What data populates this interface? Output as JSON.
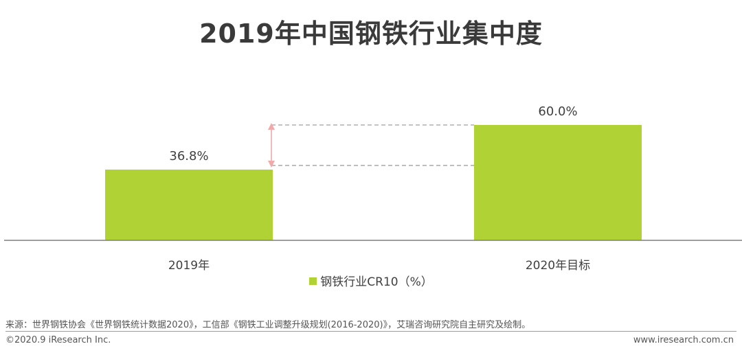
{
  "chart_data": {
    "type": "bar",
    "title": "2019年中国钢铁行业集中度",
    "categories": [
      "2019年",
      "2020年目标"
    ],
    "series": [
      {
        "name": "钢铁行业CR10（%）",
        "values": [
          36.8,
          60.0
        ],
        "color": "#b1d234"
      }
    ],
    "data_labels": [
      "36.8%",
      "60.0%"
    ],
    "xlabel": "",
    "ylabel": "",
    "ylim": [
      0,
      75
    ],
    "grid": false,
    "legend": "bottom-center"
  },
  "footer": {
    "source": "来源：世界钢铁协会《世界钢铁统计数据2020》，工信部《钢铁工业调整升级规划(2016-2020)》，艾瑞咨询研究院自主研究及绘制。",
    "copyright": "©2020.9 iResearch Inc.",
    "website": "www.iresearch.com.cn"
  },
  "colors": {
    "bar": "#b1d234",
    "arrow": "#f2a9a9",
    "dash": "#9f9f9f",
    "axis": "#7f7f7f"
  }
}
